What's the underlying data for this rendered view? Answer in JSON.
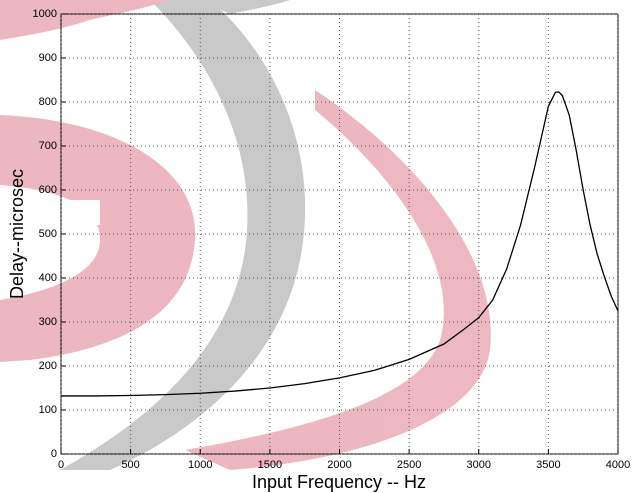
{
  "chart_data": {
    "type": "line",
    "x_label": "Input Frequency -- Hz",
    "y_label": "Delay--microsec",
    "x": [
      0,
      250,
      500,
      750,
      1000,
      1250,
      1500,
      1750,
      2000,
      2250,
      2500,
      2750,
      2900,
      3000,
      3100,
      3200,
      3300,
      3400,
      3450,
      3500,
      3550,
      3575,
      3600,
      3650,
      3700,
      3750,
      3800,
      3850,
      3900,
      3950,
      4000
    ],
    "series": [
      {
        "color": "#000000",
        "values": [
          132,
          132,
          133,
          135,
          138,
          143,
          150,
          160,
          173,
          190,
          215,
          250,
          285,
          310,
          350,
          420,
          520,
          650,
          720,
          790,
          822,
          823,
          815,
          770,
          690,
          600,
          520,
          455,
          405,
          360,
          325
        ]
      }
    ],
    "xlim": [
      0,
      4000
    ],
    "xticks": [
      0,
      500,
      1000,
      1500,
      2000,
      2500,
      3000,
      3500,
      4000
    ],
    "ylim": [
      0,
      1000
    ],
    "yticks": [
      0,
      100,
      200,
      300,
      400,
      500,
      600,
      700,
      800,
      900,
      1000
    ],
    "grid": true
  }
}
